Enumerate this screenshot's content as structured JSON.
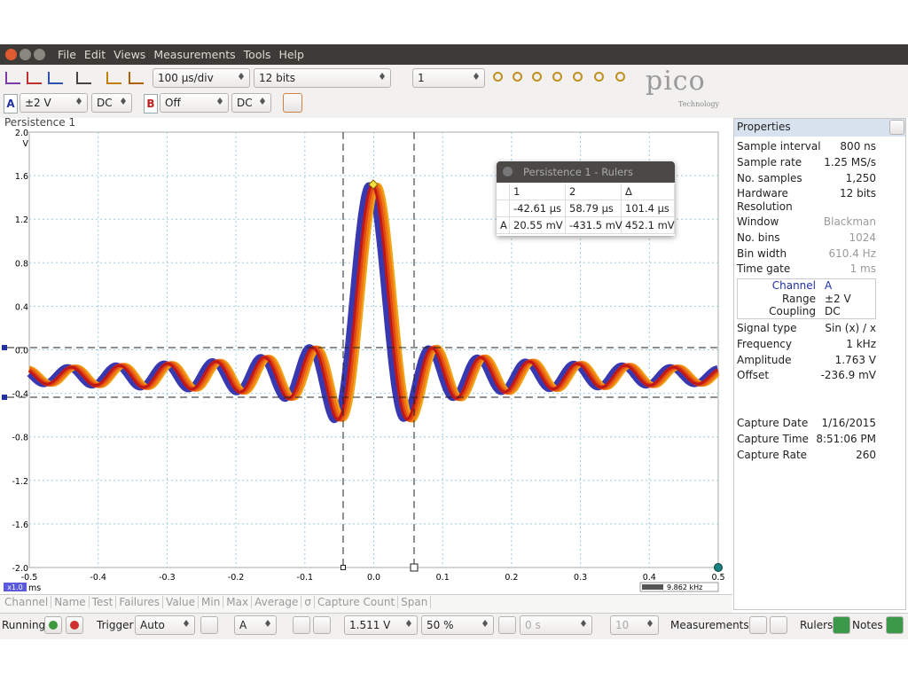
{
  "menu": [
    "File",
    "Edit",
    "Views",
    "Measurements",
    "Tools",
    "Help"
  ],
  "toolbar": {
    "timebase": "100 µs/div",
    "resolution": "12 bits",
    "captures": "1",
    "logo": "pico",
    "logo_sub": "Technology"
  },
  "channels": {
    "a_label": "A",
    "a_range": "±2 V",
    "a_coupling": "DC",
    "b_label": "B",
    "b_range": "Off",
    "b_coupling": "DC"
  },
  "view": {
    "title": "Persistence 1",
    "y_unit": "V",
    "x_unit": "ms",
    "zoom": "x1.0",
    "yticks": [
      "2.0",
      "1.6",
      "1.2",
      "0.8",
      "0.4",
      "0.0",
      "-0.4",
      "-0.8",
      "-1.2",
      "-1.6",
      "-2.0"
    ],
    "xticks": [
      "-0.5",
      "-0.4",
      "-0.3",
      "-0.2",
      "-0.1",
      "0.0",
      "0.1",
      "0.2",
      "0.3",
      "0.4",
      "0.5"
    ],
    "freq": "9.862 kHz"
  },
  "rulers": {
    "title": "Persistence 1 - Rulers",
    "header": [
      "1",
      "2",
      "Δ"
    ],
    "time_row": [
      "-42.61 µs",
      "58.79 µs",
      "101.4 µs"
    ],
    "channel_row": {
      "label": "A",
      "cells": [
        "20.55 mV",
        "-431.5 mV",
        "452.1 mV"
      ]
    }
  },
  "measurement_columns": [
    "Channel",
    "Name",
    "Test",
    "Failures",
    "Value",
    "Min",
    "Max",
    "Average",
    "σ",
    "Capture Count",
    "Span"
  ],
  "status": {
    "running": "Running",
    "trigger": "Trigger",
    "trigger_mode": "Auto",
    "trigger_channel": "A",
    "threshold": "1.511 V",
    "pretrigger": "50 %",
    "delay": "0 s",
    "count": "10",
    "measurements": "Measurements",
    "rulers": "Rulers",
    "notes": "Notes"
  },
  "properties": {
    "title": "Properties",
    "rows": [
      {
        "label": "Sample interval",
        "value": "800 ns"
      },
      {
        "label": "Sample rate",
        "value": "1.25 MS/s"
      },
      {
        "label": "No. samples",
        "value": "1,250"
      },
      {
        "label": "Hardware Resolution",
        "value": "12 bits"
      },
      {
        "label": "Window",
        "value": "Blackman",
        "dim": true
      },
      {
        "label": "No. bins",
        "value": "1024",
        "dim": true
      },
      {
        "label": "Bin width",
        "value": "610.4 Hz",
        "dim": true
      },
      {
        "label": "Time gate",
        "value": "1 ms",
        "dim": true
      }
    ],
    "channel_box": [
      {
        "label": "Channel",
        "value": "A"
      },
      {
        "label": "Range",
        "value": "±2 V"
      },
      {
        "label": "Coupling",
        "value": "DC"
      }
    ],
    "signal_rows": [
      {
        "label": "Signal type",
        "value": "Sin (x) / x"
      },
      {
        "label": "Frequency",
        "value": "1 kHz"
      },
      {
        "label": "Amplitude",
        "value": "1.763 V"
      },
      {
        "label": "Offset",
        "value": "-236.9 mV"
      }
    ],
    "capture_rows": [
      {
        "label": "Capture Date",
        "value": "1/16/2015"
      },
      {
        "label": "Capture Time",
        "value": "8:51:06 PM"
      },
      {
        "label": "Capture Rate",
        "value": "260"
      }
    ]
  }
}
